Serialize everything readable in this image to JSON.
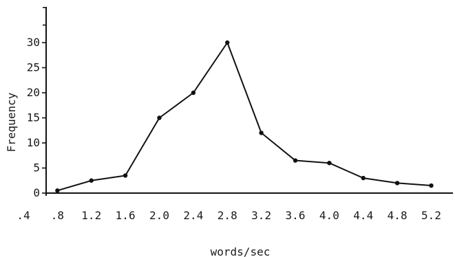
{
  "chart_data": {
    "type": "line",
    "title": "",
    "xlabel": "words/sec",
    "ylabel": "Frequency",
    "x_tick_labels": [
      ".4",
      ".8",
      "1.2",
      "1.6",
      "2.0",
      "2.4",
      "2.8",
      "3.2",
      "3.6",
      "4.0",
      "4.4",
      "4.8",
      "5.2"
    ],
    "x_ticks": [
      0.4,
      0.8,
      1.2,
      1.6,
      2.0,
      2.4,
      2.8,
      3.2,
      3.6,
      4.0,
      4.4,
      4.8,
      5.2
    ],
    "y_tick_labels": [
      "0",
      "5",
      "10",
      "15",
      "20",
      "25",
      "30"
    ],
    "y_ticks": [
      0,
      5,
      10,
      15,
      20,
      25,
      30
    ],
    "xlim": [
      0.4,
      5.5
    ],
    "ylim": [
      0,
      35
    ],
    "grid": false,
    "legend": "none",
    "series": [
      {
        "x": [
          0.8,
          1.2,
          1.6,
          2.0,
          2.4,
          2.8,
          3.2,
          3.6,
          4.0,
          4.4,
          4.8,
          5.2
        ],
        "y": [
          0.5,
          2.5,
          3.5,
          15,
          20,
          30,
          12,
          6.5,
          6,
          3,
          2,
          1.5
        ]
      }
    ]
  }
}
